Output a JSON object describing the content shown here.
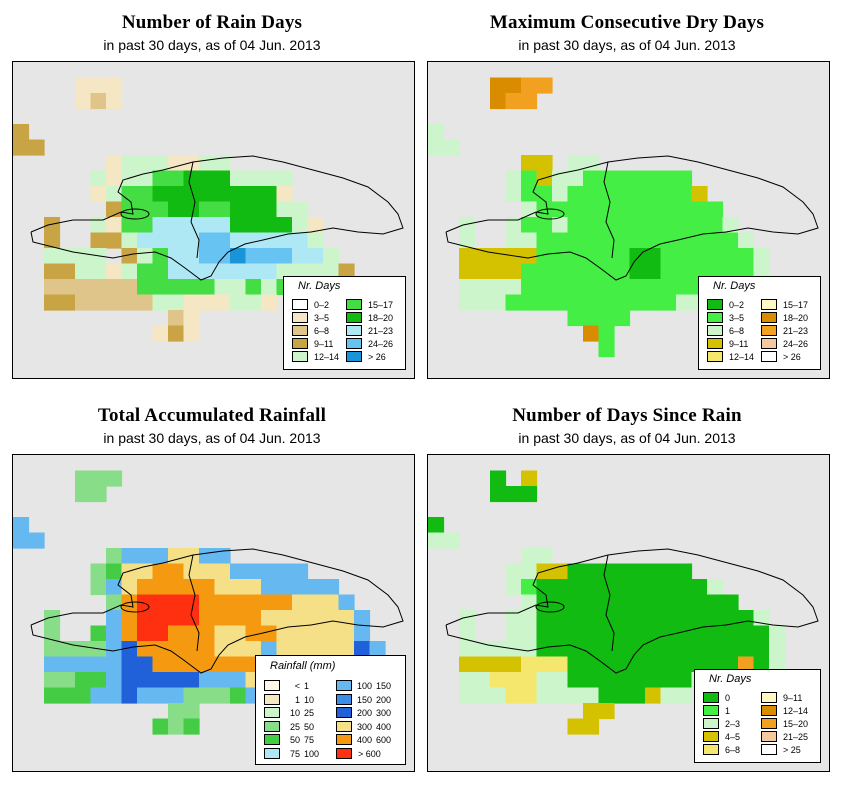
{
  "panels": [
    {
      "id": "rain-days",
      "title": "Number of Rain Days",
      "subtitle": "in past 30 days, as of  04 Jun. 2013",
      "legend_title": "Nr. Days",
      "legend_items": [
        {
          "label": "0–2",
          "color": "#ffffff"
        },
        {
          "label": "3–5",
          "color": "#f5e6c4"
        },
        {
          "label": "6–8",
          "color": "#e0c58a"
        },
        {
          "label": "9–11",
          "color": "#c9a444"
        },
        {
          "label": "12–14",
          "color": "#ccf5cc"
        },
        {
          "label": "15–17",
          "color": "#44dd44"
        },
        {
          "label": "18–20",
          "color": "#11bb11"
        },
        {
          "label": "21–23",
          "color": "#aee8f5"
        },
        {
          "label": "24–26",
          "color": "#66c3f2"
        },
        {
          "label": "> 26",
          "color": "#1a94d8"
        }
      ]
    },
    {
      "id": "dry-days",
      "title": "Maximum Consecutive Dry Days",
      "subtitle": "in past 30 days, as of  04 Jun. 2013",
      "legend_title": "Nr. Days",
      "legend_items": [
        {
          "label": "0–2",
          "color": "#11bb11"
        },
        {
          "label": "3–5",
          "color": "#44ee44"
        },
        {
          "label": "6–8",
          "color": "#ccf5cc"
        },
        {
          "label": "9–11",
          "color": "#d4c200"
        },
        {
          "label": "12–14",
          "color": "#f5e66e"
        },
        {
          "label": "15–17",
          "color": "#fff8c4"
        },
        {
          "label": "18–20",
          "color": "#d98c00"
        },
        {
          "label": "21–23",
          "color": "#f2a020"
        },
        {
          "label": "24–26",
          "color": "#f5c8a0"
        },
        {
          "label": "> 26",
          "color": "#ffffff"
        }
      ]
    },
    {
      "id": "rainfall",
      "title": "Total Accumulated Rainfall",
      "subtitle": "in past 30 days, as of  04 Jun. 2013",
      "legend_title": "Rainfall (mm)",
      "legend_items": [
        {
          "lo": "<",
          "hi": "1",
          "color": "#fff8e8"
        },
        {
          "lo": "1",
          "hi": "10",
          "color": "#f5e6c4"
        },
        {
          "lo": "10",
          "hi": "25",
          "color": "#ccf5cc"
        },
        {
          "lo": "25",
          "hi": "50",
          "color": "#88dd88"
        },
        {
          "lo": "50",
          "hi": "75",
          "color": "#44cc44"
        },
        {
          "lo": "75",
          "hi": "100",
          "color": "#aee8f5"
        },
        {
          "lo": "100",
          "hi": "150",
          "color": "#66b8f0"
        },
        {
          "lo": "150",
          "hi": "200",
          "color": "#3a8ee8"
        },
        {
          "lo": "200",
          "hi": "300",
          "color": "#2060d8"
        },
        {
          "lo": "300",
          "hi": "400",
          "color": "#f5e088"
        },
        {
          "lo": "400",
          "hi": "600",
          "color": "#f59a10"
        },
        {
          "lo": "> 600",
          "hi": "",
          "color": "#ff3010"
        }
      ]
    },
    {
      "id": "days-since-rain",
      "title": "Number of Days Since Rain",
      "subtitle": "in past 30 days, as of  04 Jun. 2013",
      "legend_title": "Nr. Days",
      "legend_items": [
        {
          "label": "0",
          "color": "#11bb11"
        },
        {
          "label": "1",
          "color": "#44ee44"
        },
        {
          "label": "2–3",
          "color": "#ccf5cc"
        },
        {
          "label": "4–5",
          "color": "#d4c200"
        },
        {
          "label": "6–8",
          "color": "#f5e66e"
        },
        {
          "label": "9–11",
          "color": "#fff8c4"
        },
        {
          "label": "12–14",
          "color": "#d98c00"
        },
        {
          "label": "15–20",
          "color": "#f2a020"
        },
        {
          "label": "21–25",
          "color": "#f5c8a0"
        },
        {
          "label": "> 25",
          "color": "#ffffff"
        }
      ]
    }
  ]
}
